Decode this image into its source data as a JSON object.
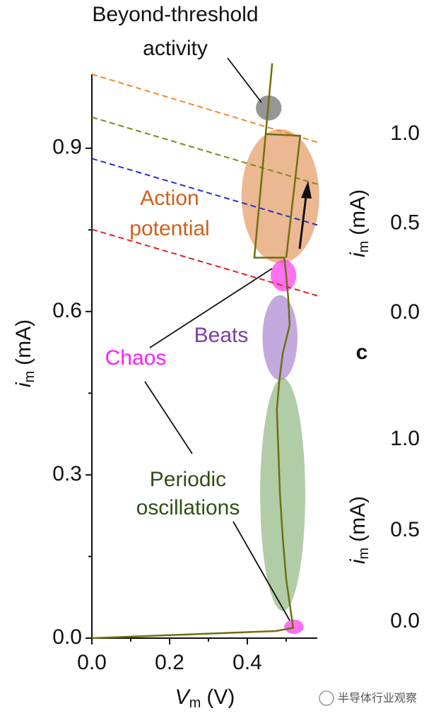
{
  "chart_data": [
    {
      "type": "line",
      "xlabel": {
        "var": "V",
        "sub": "m",
        "unit": "(V)"
      },
      "ylabel": {
        "var": "i",
        "sub": "m",
        "unit": "(mA)"
      },
      "xlim": [
        0,
        0.58
      ],
      "ylim": [
        0,
        1.036
      ],
      "xticks": [
        {
          "value": 0,
          "label": "0.0"
        },
        0.2,
        0.4
      ],
      "xminorticks": [
        0.1,
        0.3,
        0.5
      ],
      "yticks": [
        {
          "value": 0,
          "label": "0.0"
        },
        0.3,
        0.6,
        0.9
      ],
      "yminorticks": [
        0.15,
        0.45,
        0.75
      ],
      "series": [
        {
          "color": "#f08a2a",
          "dashed": true,
          "x": [
            0,
            0.58
          ],
          "values": [
            1.036,
            0.911
          ]
        },
        {
          "color": "#7a8a1a",
          "dashed": true,
          "x": [
            0,
            0.58
          ],
          "values": [
            0.957,
            0.834
          ]
        },
        {
          "color": "#2233cc",
          "dashed": true,
          "x": [
            0,
            0.58
          ],
          "values": [
            0.881,
            0.759
          ]
        },
        {
          "color": "#e02222",
          "dashed": true,
          "x": [
            0,
            0.58
          ],
          "values": [
            0.751,
            0.629
          ]
        },
        {
          "color": "#6f6f10",
          "dashed": false,
          "x": [
            0,
            0.218,
            0.473,
            0.518,
            0.513,
            0.5,
            0.491,
            0.484,
            0.48,
            0.476,
            0.482,
            0.491,
            0.509,
            0.505,
            0.5,
            0.495,
            0.418,
            0.464
          ],
          "values": [
            0,
            0.006,
            0.013,
            0.019,
            0.043,
            0.108,
            0.186,
            0.264,
            0.342,
            0.419,
            0.471,
            0.523,
            0.575,
            0.627,
            0.666,
            0.699,
            0.699,
            1.056
          ]
        },
        {
          "color": "#6f6f10",
          "dashed": false,
          "x": [
            0.447,
            0.536,
            0.5
          ],
          "values": [
            0.926,
            0.923,
            0.699
          ]
        }
      ],
      "regions": [
        {
          "label": [
            "Beyond-threshold",
            "activity"
          ],
          "color": "#6a6a6a",
          "label_color": "#111111",
          "cx": 0.455,
          "cy": 0.974,
          "rx": 0.033,
          "ry": 0.023
        },
        {
          "label": [
            "Action",
            "potential"
          ],
          "color": "#e39a62",
          "label_color": "#d0601a",
          "cx": 0.485,
          "cy": 0.812,
          "rx": 0.1,
          "ry": 0.123
        },
        {
          "label": [
            "Chaos"
          ],
          "color": "#ff33ee",
          "label_color": "#ff1aff",
          "cx": 0.493,
          "cy": 0.666,
          "rx": 0.033,
          "ry": 0.029
        },
        {
          "label": [
            "Beats"
          ],
          "color": "#a985cf",
          "label_color": "#7a3fa0",
          "cx": 0.484,
          "cy": 0.552,
          "rx": 0.045,
          "ry": 0.078
        },
        {
          "label": [
            "Periodic",
            "oscillations"
          ],
          "color": "#8fb882",
          "label_color": "#2f4f14",
          "cx": 0.491,
          "cy": 0.264,
          "rx": 0.058,
          "ry": 0.214
        },
        {
          "label": [],
          "color": "#ff33ee",
          "label_color": "#ff1aff",
          "cx": 0.52,
          "cy": 0.021,
          "rx": 0.025,
          "ry": 0.013
        }
      ]
    },
    {
      "type": "line",
      "ylabel": {
        "var": "i",
        "sub": "m",
        "unit": "(mA)"
      },
      "ylim": [
        0,
        1
      ],
      "yticks": [
        {
          "value": 0,
          "label": "0.0"
        },
        {
          "value": 0.5,
          "label": "0.5"
        },
        {
          "value": 1,
          "label": "1.0"
        }
      ]
    },
    {
      "type": "line",
      "ylabel": {
        "var": "i",
        "sub": "m",
        "unit": "(mA)"
      },
      "ylim": [
        0,
        1
      ],
      "yticks": [
        {
          "value": 0,
          "label": "0.0"
        },
        {
          "value": 0.5,
          "label": "0.5"
        },
        {
          "value": 1,
          "label": "1.0"
        }
      ]
    }
  ],
  "panel_label": "c",
  "watermark": "半导体行业观察"
}
